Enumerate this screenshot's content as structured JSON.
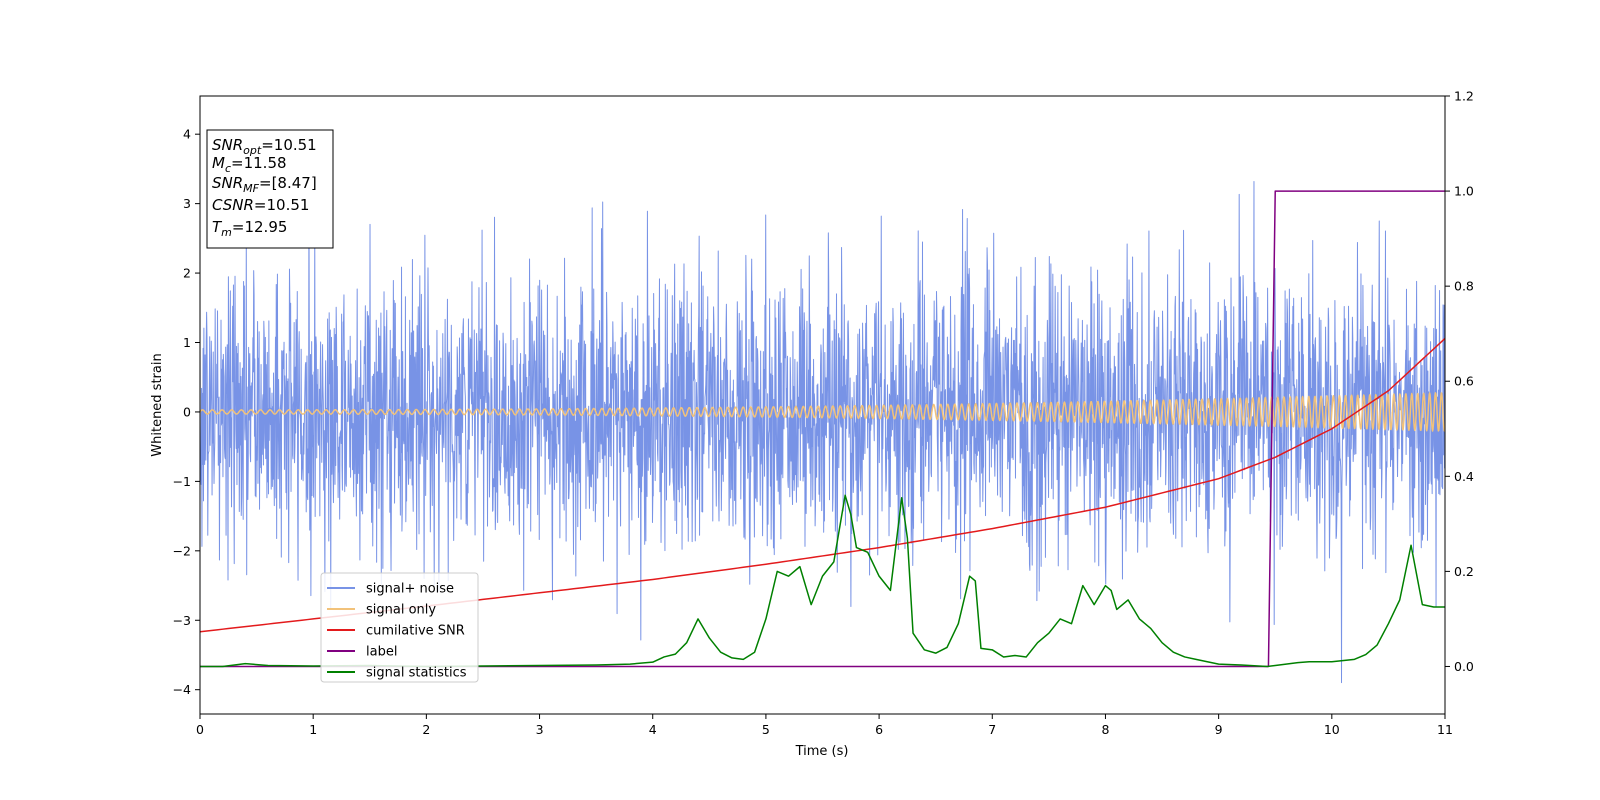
{
  "chart_data": {
    "type": "line",
    "xlabel": "Time (s)",
    "ylabel": "Whitened strain",
    "xlim": [
      0,
      11
    ],
    "ylim": [
      -4.35,
      4.55
    ],
    "y2lim": [
      -0.1,
      1.2
    ],
    "grid": false,
    "legend_placement": "lower-left",
    "x_ticks": [
      "0",
      "1",
      "2",
      "3",
      "4",
      "5",
      "6",
      "7",
      "8",
      "9",
      "10",
      "11"
    ],
    "y_ticks": [
      "−4",
      "−3",
      "−2",
      "−1",
      "0",
      "1",
      "2",
      "3",
      "4"
    ],
    "y2_ticks": [
      "0.0",
      "0.2",
      "0.4",
      "0.6",
      "0.8",
      "1.0",
      "1.2"
    ],
    "info_box": [
      {
        "base": "SNR",
        "sub": "opt",
        "value": "=10.51"
      },
      {
        "base": "M",
        "sub": "c",
        "value": "=11.58"
      },
      {
        "base": "SNR",
        "sub": "MF",
        "value": "=[8.47]"
      },
      {
        "base": "CSNR",
        "sub": "",
        "value": "=10.51"
      },
      {
        "base": "T",
        "sub": "m",
        "value": "=12.95"
      }
    ],
    "series": [
      {
        "name": "signal+ noise",
        "axis": "left",
        "color": "#7893e6",
        "kind": "noise",
        "std": 1.0,
        "spike_max": 4.15,
        "spike_min": -3.9
      },
      {
        "name": "signal only",
        "axis": "left",
        "color": "#f2c27a",
        "kind": "chirp",
        "amplitude_start": 0.03,
        "amplitude_end": 0.28
      },
      {
        "name": "cumilative SNR",
        "axis": "right",
        "color": "#e31a1c",
        "x": [
          0,
          1,
          2,
          3,
          4,
          5,
          6,
          7,
          8,
          9,
          9.5,
          10,
          10.5,
          11
        ],
        "y": [
          0.073,
          0.1,
          0.127,
          0.155,
          0.183,
          0.215,
          0.25,
          0.29,
          0.335,
          0.395,
          0.44,
          0.5,
          0.58,
          0.69
        ]
      },
      {
        "name": "label",
        "axis": "right",
        "color": "#800080",
        "x": [
          0,
          9.44,
          9.5,
          11
        ],
        "y": [
          0,
          0,
          1,
          1
        ]
      },
      {
        "name": "signal statistics",
        "axis": "right",
        "color": "#008000",
        "x": [
          0,
          0.2,
          0.4,
          0.6,
          1.0,
          1.5,
          2.0,
          2.5,
          3.0,
          3.5,
          3.8,
          4.0,
          4.1,
          4.2,
          4.3,
          4.4,
          4.5,
          4.6,
          4.7,
          4.8,
          4.9,
          5.0,
          5.1,
          5.2,
          5.3,
          5.4,
          5.5,
          5.6,
          5.7,
          5.75,
          5.8,
          5.9,
          6.0,
          6.1,
          6.2,
          6.25,
          6.3,
          6.4,
          6.5,
          6.6,
          6.7,
          6.8,
          6.85,
          6.9,
          7.0,
          7.1,
          7.2,
          7.3,
          7.4,
          7.5,
          7.6,
          7.7,
          7.8,
          7.9,
          8.0,
          8.05,
          8.1,
          8.2,
          8.3,
          8.4,
          8.5,
          8.6,
          8.7,
          8.8,
          8.9,
          9.0,
          9.2,
          9.43,
          9.5,
          9.7,
          9.8,
          10.0,
          10.2,
          10.3,
          10.4,
          10.5,
          10.6,
          10.7,
          10.8,
          10.9,
          11.0
        ],
        "y": [
          0,
          0,
          0.006,
          0.002,
          0.001,
          0.002,
          0,
          0.001,
          0.002,
          0.003,
          0.005,
          0.009,
          0.02,
          0.026,
          0.05,
          0.1,
          0.06,
          0.03,
          0.018,
          0.015,
          0.03,
          0.1,
          0.2,
          0.19,
          0.21,
          0.13,
          0.19,
          0.22,
          0.36,
          0.32,
          0.25,
          0.24,
          0.19,
          0.16,
          0.355,
          0.27,
          0.07,
          0.035,
          0.028,
          0.04,
          0.09,
          0.19,
          0.18,
          0.038,
          0.035,
          0.02,
          0.023,
          0.02,
          0.05,
          0.07,
          0.1,
          0.09,
          0.17,
          0.13,
          0.17,
          0.16,
          0.12,
          0.14,
          0.1,
          0.08,
          0.05,
          0.03,
          0.02,
          0.015,
          0.01,
          0.005,
          0.003,
          0,
          0.002,
          0.008,
          0.01,
          0.01,
          0.015,
          0.025,
          0.045,
          0.09,
          0.14,
          0.255,
          0.13,
          0.125,
          0.125
        ]
      }
    ]
  }
}
